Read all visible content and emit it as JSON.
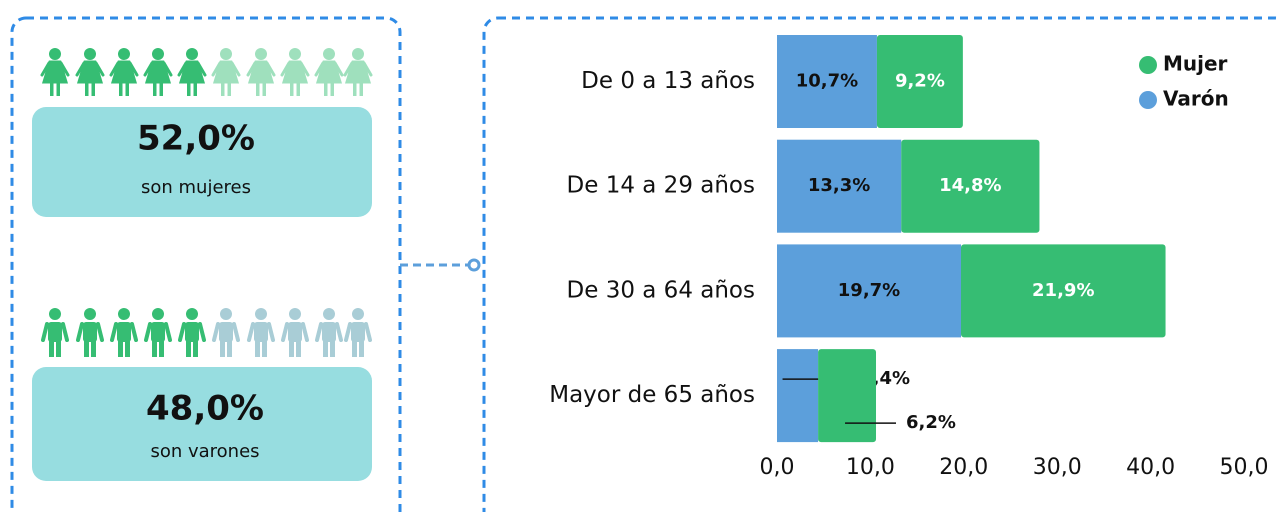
{
  "summary": [
    {
      "value": "52,0%",
      "label": "son mujeres"
    },
    {
      "value": "48,0%",
      "label": "son varones"
    }
  ],
  "chart_data": {
    "type": "stacked_bar_horizontal",
    "categories": [
      "De 0 a 13 años",
      "De 14 a 29 años",
      "De 30 a 64 años",
      "Mayor de 65 años"
    ],
    "series": [
      {
        "name": "Varón",
        "color": "#5c9fdb",
        "values": [
          10.7,
          13.3,
          19.7,
          4.4
        ],
        "value_labels": [
          "10,7%",
          "13,3%",
          "19,7%",
          "4,4%"
        ]
      },
      {
        "name": "Mujer",
        "color": "#36bd73",
        "values": [
          9.2,
          14.8,
          21.9,
          6.2
        ],
        "value_labels": [
          "9,2%",
          "14,8%",
          "21,9%",
          "6,2%"
        ]
      }
    ],
    "xlim": [
      0,
      50
    ],
    "xticks": [
      {
        "value": 0,
        "label": "0,0"
      },
      {
        "value": 10,
        "label": "10,0"
      },
      {
        "value": 20,
        "label": "20,0"
      },
      {
        "value": 30,
        "label": "30,0"
      },
      {
        "value": 40,
        "label": "40,0"
      },
      {
        "value": 50,
        "label": "50,0"
      }
    ],
    "legend": "top-right"
  }
}
